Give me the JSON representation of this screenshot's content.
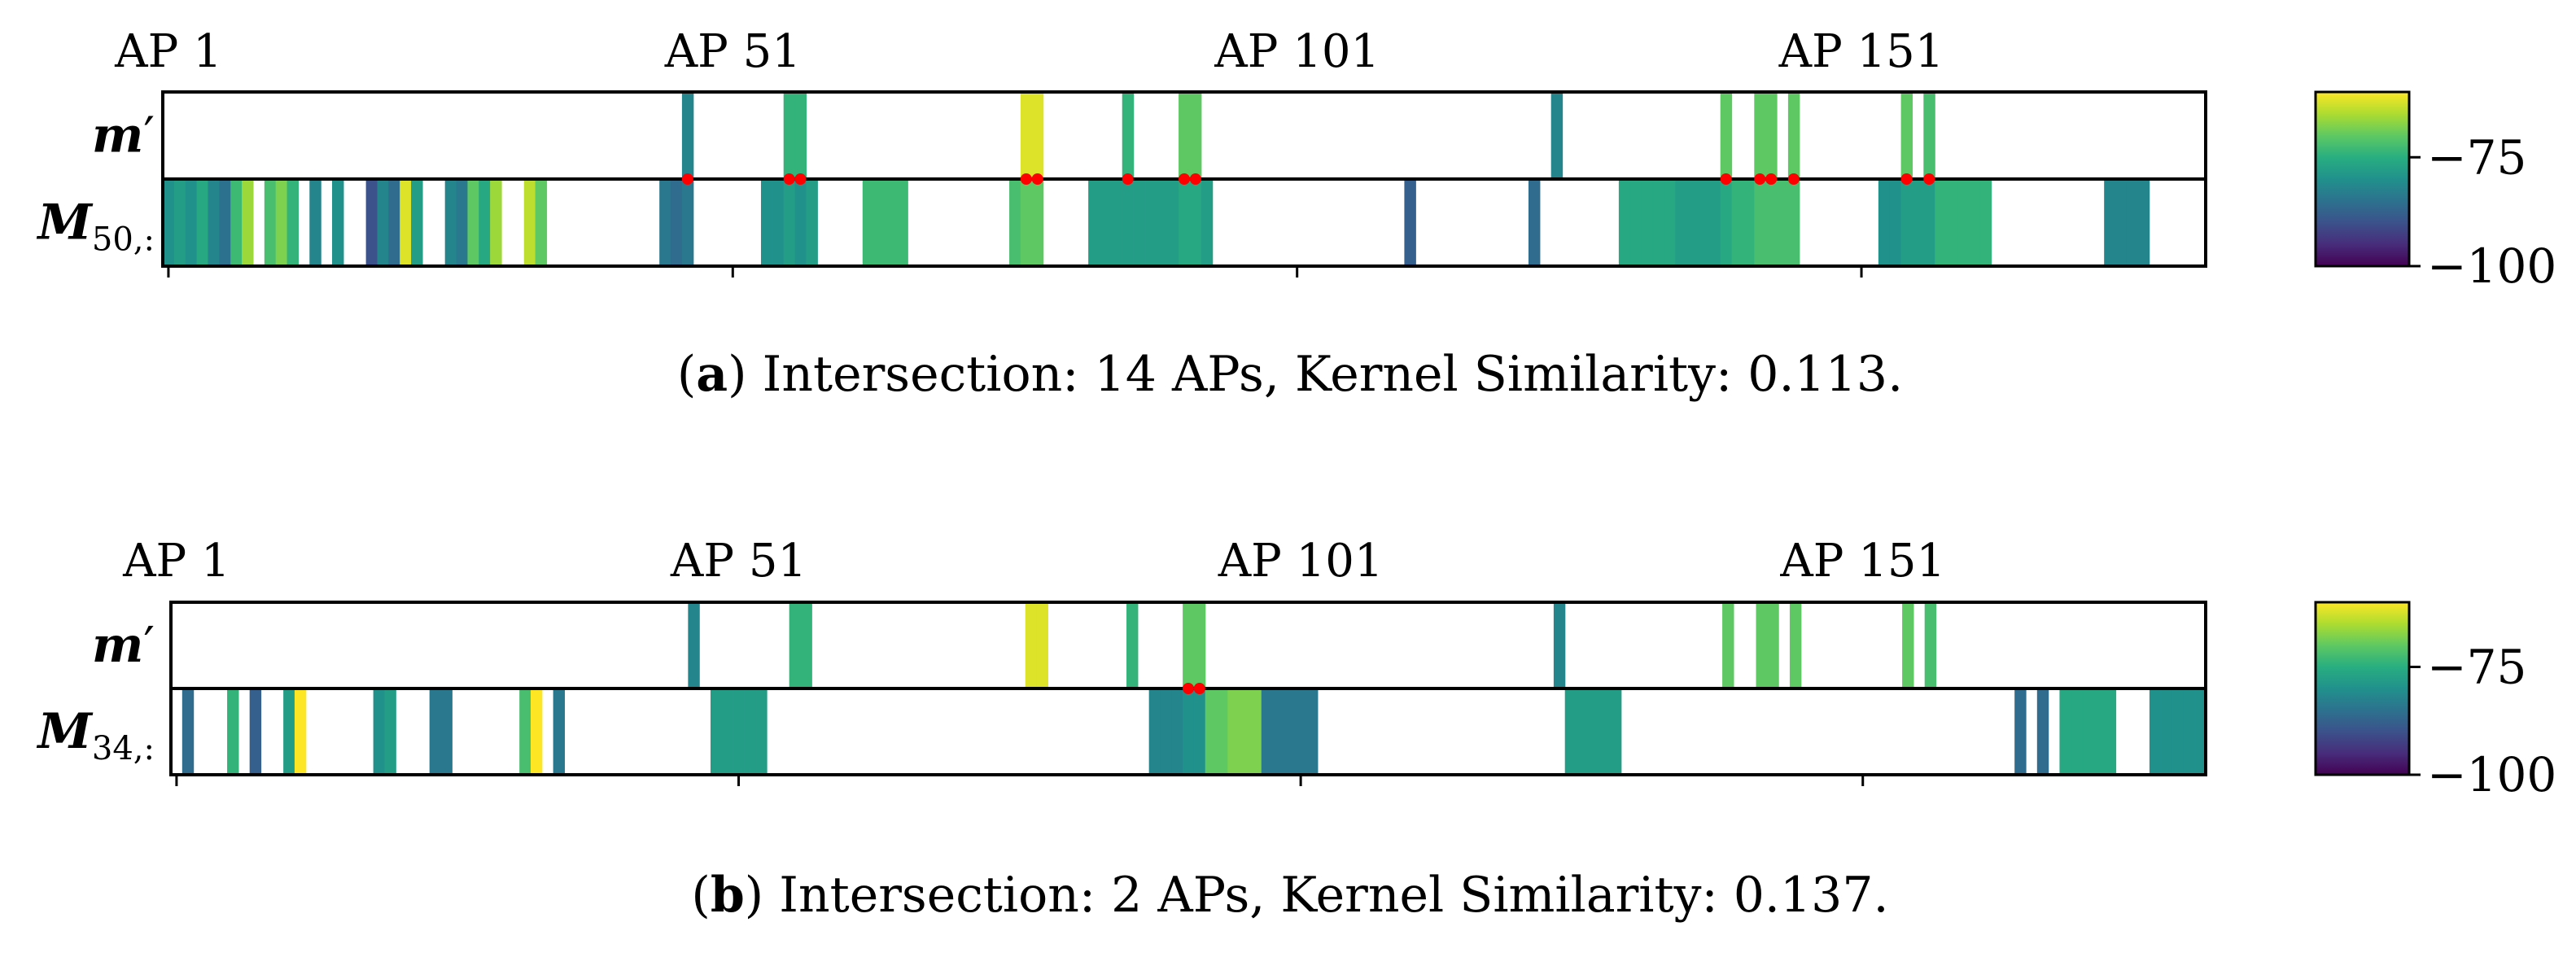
{
  "chart_data": [
    {
      "type": "heatmap",
      "panel": "a",
      "colormap": "viridis",
      "value_range": [
        -100,
        -60
      ],
      "colorbar_ticks": [
        {
          "value": -75,
          "label": "−75"
        },
        {
          "value": -100,
          "label": "−100"
        }
      ],
      "x_tick_labels": [
        {
          "ap": 1,
          "label": "AP 1"
        },
        {
          "ap": 51,
          "label": "AP 51"
        },
        {
          "ap": 101,
          "label": "AP 101"
        },
        {
          "ap": 151,
          "label": "AP 151"
        }
      ],
      "n_aps": 181,
      "rows": [
        {
          "label_main": "m",
          "label_prime": "′",
          "label_sub": "",
          "cells": [
            {
              "ap": 47,
              "value": -82
            },
            {
              "ap": 56,
              "value": -74
            },
            {
              "ap": 57,
              "value": -74
            },
            {
              "ap": 77,
              "value": -62
            },
            {
              "ap": 78,
              "value": -62
            },
            {
              "ap": 86,
              "value": -74
            },
            {
              "ap": 91,
              "value": -70
            },
            {
              "ap": 92,
              "value": -70
            },
            {
              "ap": 124,
              "value": -82
            },
            {
              "ap": 139,
              "value": -70
            },
            {
              "ap": 142,
              "value": -70
            },
            {
              "ap": 143,
              "value": -70
            },
            {
              "ap": 145,
              "value": -70
            },
            {
              "ap": 155,
              "value": -70
            },
            {
              "ap": 157,
              "value": -72
            }
          ]
        },
        {
          "label_main": "M",
          "label_prime": "",
          "label_sub": "50,:",
          "cells": [
            {
              "ap": 1,
              "value": -80
            },
            {
              "ap": 2,
              "value": -78
            },
            {
              "ap": 3,
              "value": -80
            },
            {
              "ap": 4,
              "value": -76
            },
            {
              "ap": 5,
              "value": -82
            },
            {
              "ap": 6,
              "value": -85
            },
            {
              "ap": 7,
              "value": -73
            },
            {
              "ap": 8,
              "value": -66
            },
            {
              "ap": 10,
              "value": -72
            },
            {
              "ap": 11,
              "value": -68
            },
            {
              "ap": 12,
              "value": -74
            },
            {
              "ap": 14,
              "value": -82
            },
            {
              "ap": 16,
              "value": -80
            },
            {
              "ap": 19,
              "value": -90
            },
            {
              "ap": 20,
              "value": -82
            },
            {
              "ap": 21,
              "value": -86
            },
            {
              "ap": 22,
              "value": -62
            },
            {
              "ap": 23,
              "value": -78
            },
            {
              "ap": 26,
              "value": -82
            },
            {
              "ap": 27,
              "value": -84
            },
            {
              "ap": 28,
              "value": -70
            },
            {
              "ap": 29,
              "value": -76
            },
            {
              "ap": 30,
              "value": -66
            },
            {
              "ap": 33,
              "value": -64
            },
            {
              "ap": 34,
              "value": -70
            },
            {
              "ap": 45,
              "value": -84
            },
            {
              "ap": 46,
              "value": -86
            },
            {
              "ap": 47,
              "value": -84
            },
            {
              "ap": 54,
              "value": -80
            },
            {
              "ap": 55,
              "value": -80
            },
            {
              "ap": 56,
              "value": -78
            },
            {
              "ap": 57,
              "value": -80
            },
            {
              "ap": 58,
              "value": -78
            },
            {
              "ap": 63,
              "value": -73
            },
            {
              "ap": 64,
              "value": -73
            },
            {
              "ap": 65,
              "value": -73
            },
            {
              "ap": 66,
              "value": -73
            },
            {
              "ap": 76,
              "value": -72
            },
            {
              "ap": 77,
              "value": -70
            },
            {
              "ap": 78,
              "value": -70
            },
            {
              "ap": 83,
              "value": -78
            },
            {
              "ap": 84,
              "value": -78
            },
            {
              "ap": 85,
              "value": -78
            },
            {
              "ap": 86,
              "value": -78
            },
            {
              "ap": 87,
              "value": -78
            },
            {
              "ap": 88,
              "value": -78
            },
            {
              "ap": 89,
              "value": -78
            },
            {
              "ap": 90,
              "value": -78
            },
            {
              "ap": 91,
              "value": -76
            },
            {
              "ap": 92,
              "value": -76
            },
            {
              "ap": 93,
              "value": -78
            },
            {
              "ap": 111,
              "value": -88
            },
            {
              "ap": 122,
              "value": -86
            },
            {
              "ap": 130,
              "value": -76
            },
            {
              "ap": 131,
              "value": -76
            },
            {
              "ap": 132,
              "value": -76
            },
            {
              "ap": 133,
              "value": -76
            },
            {
              "ap": 134,
              "value": -76
            },
            {
              "ap": 135,
              "value": -78
            },
            {
              "ap": 136,
              "value": -78
            },
            {
              "ap": 137,
              "value": -78
            },
            {
              "ap": 138,
              "value": -78
            },
            {
              "ap": 139,
              "value": -76
            },
            {
              "ap": 140,
              "value": -74
            },
            {
              "ap": 141,
              "value": -74
            },
            {
              "ap": 142,
              "value": -72
            },
            {
              "ap": 143,
              "value": -72
            },
            {
              "ap": 144,
              "value": -72
            },
            {
              "ap": 145,
              "value": -72
            },
            {
              "ap": 153,
              "value": -80
            },
            {
              "ap": 154,
              "value": -80
            },
            {
              "ap": 155,
              "value": -78
            },
            {
              "ap": 156,
              "value": -78
            },
            {
              "ap": 157,
              "value": -78
            },
            {
              "ap": 158,
              "value": -74
            },
            {
              "ap": 159,
              "value": -74
            },
            {
              "ap": 160,
              "value": -74
            },
            {
              "ap": 161,
              "value": -74
            },
            {
              "ap": 162,
              "value": -74
            },
            {
              "ap": 173,
              "value": -82
            },
            {
              "ap": 174,
              "value": -82
            },
            {
              "ap": 175,
              "value": -82
            },
            {
              "ap": 176,
              "value": -82
            }
          ]
        }
      ],
      "intersection_aps": [
        47,
        56,
        57,
        77,
        78,
        86,
        91,
        92,
        139,
        142,
        143,
        145,
        155,
        157
      ],
      "caption": {
        "tag": "a",
        "text": "Intersection: 14 APs, Kernel Similarity: 0.113."
      }
    },
    {
      "type": "heatmap",
      "panel": "b",
      "colormap": "viridis",
      "value_range": [
        -100,
        -60
      ],
      "colorbar_ticks": [
        {
          "value": -75,
          "label": "−75"
        },
        {
          "value": -100,
          "label": "−100"
        }
      ],
      "x_tick_labels": [
        {
          "ap": 1,
          "label": "AP 1"
        },
        {
          "ap": 51,
          "label": "AP 51"
        },
        {
          "ap": 101,
          "label": "AP 101"
        },
        {
          "ap": 151,
          "label": "AP 151"
        }
      ],
      "n_aps": 181,
      "rows": [
        {
          "label_main": "m",
          "label_prime": "′",
          "label_sub": "",
          "cells": [
            {
              "ap": 47,
              "value": -82
            },
            {
              "ap": 56,
              "value": -74
            },
            {
              "ap": 57,
              "value": -74
            },
            {
              "ap": 77,
              "value": -62
            },
            {
              "ap": 78,
              "value": -62
            },
            {
              "ap": 86,
              "value": -74
            },
            {
              "ap": 91,
              "value": -70
            },
            {
              "ap": 92,
              "value": -70
            },
            {
              "ap": 124,
              "value": -82
            },
            {
              "ap": 139,
              "value": -70
            },
            {
              "ap": 142,
              "value": -70
            },
            {
              "ap": 143,
              "value": -70
            },
            {
              "ap": 145,
              "value": -70
            },
            {
              "ap": 155,
              "value": -70
            },
            {
              "ap": 157,
              "value": -72
            }
          ]
        },
        {
          "label_main": "M",
          "label_prime": "",
          "label_sub": "34,:",
          "cells": [
            {
              "ap": 2,
              "value": -86
            },
            {
              "ap": 6,
              "value": -74
            },
            {
              "ap": 8,
              "value": -88
            },
            {
              "ap": 11,
              "value": -78
            },
            {
              "ap": 12,
              "value": -60
            },
            {
              "ap": 19,
              "value": -80
            },
            {
              "ap": 20,
              "value": -78
            },
            {
              "ap": 24,
              "value": -84
            },
            {
              "ap": 25,
              "value": -84
            },
            {
              "ap": 32,
              "value": -72
            },
            {
              "ap": 33,
              "value": -60
            },
            {
              "ap": 35,
              "value": -84
            },
            {
              "ap": 49,
              "value": -78
            },
            {
              "ap": 50,
              "value": -78
            },
            {
              "ap": 51,
              "value": -78
            },
            {
              "ap": 52,
              "value": -78
            },
            {
              "ap": 53,
              "value": -78
            },
            {
              "ap": 88,
              "value": -82
            },
            {
              "ap": 89,
              "value": -82
            },
            {
              "ap": 90,
              "value": -82
            },
            {
              "ap": 91,
              "value": -80
            },
            {
              "ap": 92,
              "value": -80
            },
            {
              "ap": 93,
              "value": -70
            },
            {
              "ap": 94,
              "value": -70
            },
            {
              "ap": 95,
              "value": -68
            },
            {
              "ap": 96,
              "value": -68
            },
            {
              "ap": 97,
              "value": -68
            },
            {
              "ap": 98,
              "value": -84
            },
            {
              "ap": 99,
              "value": -84
            },
            {
              "ap": 100,
              "value": -84
            },
            {
              "ap": 101,
              "value": -84
            },
            {
              "ap": 102,
              "value": -84
            },
            {
              "ap": 125,
              "value": -78
            },
            {
              "ap": 126,
              "value": -78
            },
            {
              "ap": 127,
              "value": -78
            },
            {
              "ap": 128,
              "value": -78
            },
            {
              "ap": 129,
              "value": -78
            },
            {
              "ap": 165,
              "value": -86
            },
            {
              "ap": 167,
              "value": -86
            },
            {
              "ap": 169,
              "value": -76
            },
            {
              "ap": 170,
              "value": -76
            },
            {
              "ap": 171,
              "value": -76
            },
            {
              "ap": 172,
              "value": -76
            },
            {
              "ap": 173,
              "value": -76
            },
            {
              "ap": 177,
              "value": -80
            },
            {
              "ap": 178,
              "value": -80
            },
            {
              "ap": 179,
              "value": -80
            },
            {
              "ap": 180,
              "value": -80
            },
            {
              "ap": 181,
              "value": -80
            }
          ]
        }
      ],
      "intersection_aps": [
        91,
        92
      ],
      "caption": {
        "tag": "b",
        "text": "Intersection: 2 APs, Kernel Similarity: 0.137."
      }
    }
  ]
}
